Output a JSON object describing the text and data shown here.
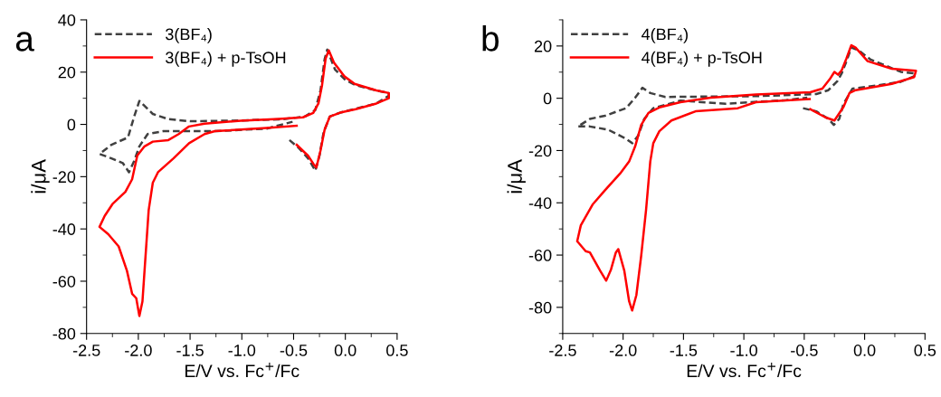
{
  "chart_data": [
    {
      "type": "line",
      "annotations": [
        "a"
      ],
      "xlabel": "E/V vs. Fc$^{+}$/Fc",
      "ylabel": "i/μA",
      "xlim": [
        -2.5,
        0.5
      ],
      "xticks": [
        -2.5,
        {
          "value": -2,
          "label": "-2.0"
        },
        -1.5,
        {
          "value": -1,
          "label": "-1.0"
        },
        -0.5,
        {
          "value": 0,
          "label": "0.0"
        },
        0.5
      ],
      "ylim": [
        -80,
        40
      ],
      "yticks": [
        -80,
        -60,
        -40,
        -20,
        0,
        20,
        40
      ],
      "grid": false,
      "legend": "top left",
      "marker": "none",
      "series": [
        {
          "name": "3(BF₄)",
          "color": "#404040",
          "line_style": "dashed",
          "x": [
            -0.54,
            -0.45,
            -0.36,
            -0.29,
            -0.25,
            -0.21,
            -0.15,
            -0.05,
            0.1,
            0.3,
            0.42,
            0.42,
            0.3,
            0.1,
            0.0,
            -0.1,
            -0.175,
            -0.2,
            -0.24,
            -0.29,
            -0.39,
            -0.6,
            -1.0,
            -1.5,
            -1.71,
            -1.86,
            -1.99,
            -2.04,
            -2.1,
            -2.26,
            -2.375,
            -2.26,
            -2.15,
            -2.09,
            -2.04,
            -1.99,
            -1.91,
            -1.76,
            -1.26,
            -0.76,
            -0.51
          ],
          "values": [
            -6,
            -9,
            -13,
            -17.7,
            -12,
            -3,
            3,
            4.5,
            6,
            8,
            11,
            12,
            13,
            15,
            17,
            21,
            28.6,
            25,
            13,
            5.5,
            3,
            2,
            1.5,
            1.2,
            2,
            4,
            9,
            3,
            -5,
            -7.8,
            -11.3,
            -13,
            -14.8,
            -18.3,
            -14,
            -8.4,
            -3.7,
            -2.6,
            -2.6,
            -1.6,
            1.0
          ]
        },
        {
          "name": "3(BF₄) + p-TsOH",
          "color": "#ff0000",
          "line_style": "solid",
          "x": [
            -0.47,
            -0.76,
            -1.01,
            -1.26,
            -1.36,
            -1.51,
            -1.66,
            -1.81,
            -1.86,
            -1.9,
            -1.94,
            -1.96,
            -1.99,
            -2.02,
            -2.06,
            -2.11,
            -2.19,
            -2.29,
            -2.375,
            -2.325,
            -2.25,
            -2.125,
            -2.06,
            -2.01,
            -1.94,
            -1.86,
            -1.71,
            -1.61,
            -1.51,
            -1.36,
            -1.01,
            -0.64,
            -0.41,
            -0.31,
            -0.26,
            -0.225,
            -0.19,
            -0.16,
            -0.11,
            -0.01,
            0.09,
            0.3,
            0.42,
            0.42,
            0.3,
            0.1,
            -0.05,
            -0.15,
            -0.2,
            -0.24,
            -0.28,
            -0.31,
            -0.36,
            -0.47
          ],
          "values": [
            -0.5,
            -1.4,
            -2,
            -2.6,
            -3.7,
            -7.2,
            -13,
            -18.3,
            -22.3,
            -32.8,
            -56,
            -67.7,
            -73.3,
            -66.5,
            -64.8,
            -56,
            -46.7,
            -42,
            -39.2,
            -35,
            -30.5,
            -25.8,
            -21,
            -11.9,
            -8.4,
            -6.6,
            -6,
            -3.7,
            -0.8,
            0.3,
            1.4,
            2.1,
            2.7,
            4.4,
            8,
            15,
            25.3,
            28.3,
            23.6,
            18.4,
            15.5,
            13,
            12,
            10,
            8,
            5.8,
            4.5,
            3,
            -2,
            -10,
            -16.5,
            -15,
            -12,
            -7.8
          ]
        }
      ]
    },
    {
      "type": "line",
      "annotations": [
        "b"
      ],
      "xlabel": "E/V vs. Fc$^{+}$/Fc",
      "ylabel": "i/μA",
      "xlim": [
        -2.5,
        0.5
      ],
      "xticks": [
        -2.5,
        {
          "value": -2,
          "label": "-2.0"
        },
        -1.5,
        {
          "value": -1,
          "label": "-1.0"
        },
        -0.5,
        {
          "value": 0,
          "label": "0.0"
        },
        0.5
      ],
      "ylim": [
        -90,
        30
      ],
      "yticks": [
        -80,
        -60,
        -40,
        -20,
        0,
        20
      ],
      "grid": false,
      "legend": "top left",
      "marker": "none",
      "series": [
        {
          "name": "4(BF₄)",
          "color": "#404040",
          "line_style": "dashed",
          "x": [
            -0.51,
            -0.4,
            -0.3,
            -0.255,
            -0.21,
            -0.175,
            -0.1,
            0.1,
            0.3,
            0.41,
            0.42,
            0.3,
            0.05,
            -0.05,
            -0.11,
            -0.15,
            -0.19,
            -0.225,
            -0.3,
            -0.4,
            -0.9,
            -1.4,
            -1.65,
            -1.775,
            -1.84,
            -1.9,
            -1.975,
            -2.15,
            -2.275,
            -2.375,
            -2.275,
            -2.125,
            -1.975,
            -1.925,
            -1.875,
            -1.825,
            -1.75,
            -1.525,
            -1.15,
            -0.65,
            -0.475
          ],
          "values": [
            -3.8,
            -5,
            -7.9,
            -10.2,
            -7.9,
            -2.1,
            3.7,
            4.9,
            6.3,
            8.4,
            9.5,
            10.1,
            14.8,
            18.3,
            19.4,
            14.2,
            9.5,
            6.6,
            3.1,
            1.6,
            0.8,
            0.6,
            0.5,
            2,
            4,
            0.2,
            -3.8,
            -6.7,
            -7.9,
            -10.8,
            -10.8,
            -12,
            -15.5,
            -17.2,
            -14.3,
            -7.9,
            -3.8,
            -0.9,
            -2.1,
            -0.7,
            0.2
          ]
        },
        {
          "name": "4(BF₄) + p-TsOH",
          "color": "#ff0000",
          "line_style": "solid",
          "x": [
            -0.455,
            -0.9,
            -1.05,
            -1.4,
            -1.6,
            -1.7,
            -1.75,
            -1.775,
            -1.81,
            -1.85,
            -1.89,
            -1.925,
            -1.95,
            -1.99,
            -2.04,
            -2.06,
            -2.1,
            -2.14,
            -2.19,
            -2.275,
            -2.31,
            -2.38,
            -2.35,
            -2.25,
            -2.15,
            -2.025,
            -1.95,
            -1.9,
            -1.85,
            -1.79,
            -1.7,
            -1.525,
            -1.275,
            -0.9,
            -0.45,
            -0.35,
            -0.29,
            -0.25,
            -0.22,
            -0.19,
            -0.15,
            -0.11,
            -0.075,
            0.025,
            0.225,
            0.425,
            0.41,
            0.225,
            -0.075,
            -0.125,
            -0.175,
            -0.25,
            -0.325,
            -0.45
          ],
          "values": [
            -0.3,
            -1.5,
            -3.8,
            -5,
            -8.5,
            -12.6,
            -17.2,
            -24.2,
            -42.8,
            -60.2,
            -75.3,
            -81.2,
            -77.7,
            -66,
            -57.7,
            -59,
            -65.5,
            -69.8,
            -66,
            -59,
            -58.5,
            -54.7,
            -48.6,
            -40.5,
            -35.2,
            -28.8,
            -24.2,
            -18.4,
            -10.2,
            -5.6,
            -3.5,
            -1.5,
            0.2,
            1.4,
            2.3,
            3.7,
            7.2,
            10.1,
            9,
            10.7,
            15.3,
            20.3,
            19.4,
            14.2,
            11.3,
            10.5,
            8.1,
            5.5,
            3.1,
            2,
            -3.3,
            -8.5,
            -7.3,
            -4.2
          ]
        }
      ]
    }
  ]
}
